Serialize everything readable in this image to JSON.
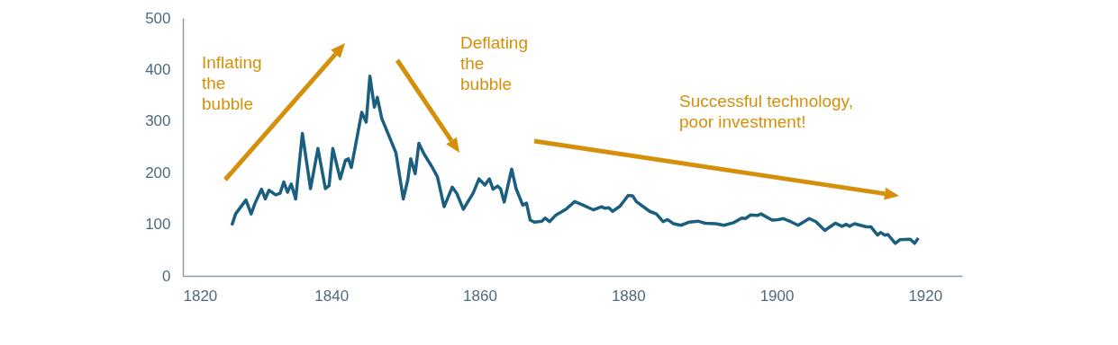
{
  "chart_data": {
    "type": "line",
    "x": [
      1826.6,
      1827.1,
      1828.5,
      1829.2,
      1829.7,
      1830.6,
      1831.1,
      1831.6,
      1832.5,
      1833.1,
      1833.6,
      1834.1,
      1834.6,
      1835.2,
      1836.1,
      1837.2,
      1838.2,
      1839.2,
      1839.7,
      1840.2,
      1841.2,
      1841.9,
      1842.3,
      1842.7,
      1844.1,
      1844.7,
      1845.2,
      1845.8,
      1846.2,
      1846.8,
      1848.7,
      1849.7,
      1850.3,
      1850.7,
      1851.3,
      1851.8,
      1852.5,
      1853.5,
      1854.3,
      1855.2,
      1856.3,
      1856.9,
      1857.8,
      1859.1,
      1859.9,
      1860.7,
      1861.3,
      1861.8,
      1862.4,
      1862.8,
      1863.3,
      1864.3,
      1864.9,
      1865.8,
      1866.3,
      1866.8,
      1867.4,
      1868.4,
      1868.8,
      1869.4,
      1870.2,
      1871.6,
      1872.8,
      1873.8,
      1875.3,
      1876.4,
      1876.9,
      1877.4,
      1877.9,
      1878.9,
      1880.0,
      1880.6,
      1881.1,
      1882.9,
      1883.8,
      1884.7,
      1885.3,
      1886.1,
      1887.1,
      1888.2,
      1889.4,
      1890.4,
      1891.8,
      1892.9,
      1894.2,
      1895.3,
      1895.8,
      1896.5,
      1897.4,
      1897.9,
      1899.4,
      1900.2,
      1900.9,
      1901.9,
      1902.9,
      1904.4,
      1905.3,
      1906.5,
      1907.9,
      1908.8,
      1909.4,
      1909.8,
      1910.5,
      1912.1,
      1912.7,
      1913.6,
      1914.0,
      1914.6,
      1915.0,
      1916.0,
      1916.6,
      1918.0,
      1918.6,
      1919.1
    ],
    "series": [
      {
        "color": "#1a5f80",
        "values": [
          98,
          120,
          147,
          120,
          140,
          168,
          149,
          166,
          157,
          160,
          182,
          162,
          178,
          149,
          276,
          169,
          247,
          169,
          175,
          247,
          188,
          224,
          227,
          210,
          317,
          298,
          387,
          327,
          346,
          305,
          239,
          149,
          186,
          227,
          198,
          257,
          236,
          213,
          192,
          134,
          172,
          160,
          129,
          160,
          188,
          176,
          188,
          168,
          174,
          169,
          143,
          207,
          169,
          137,
          141,
          108,
          104,
          106,
          112,
          105,
          117,
          129,
          144,
          138,
          128,
          134,
          131,
          132,
          125,
          135,
          156,
          155,
          144,
          125,
          120,
          105,
          109,
          101,
          98,
          104,
          106,
          102,
          101,
          98,
          103,
          112,
          111,
          118,
          117,
          120,
          108,
          109,
          111,
          105,
          98,
          111,
          105,
          88,
          102,
          96,
          100,
          96,
          101,
          95,
          95,
          79,
          84,
          79,
          80,
          63,
          70,
          71,
          63,
          73
        ]
      }
    ],
    "xlim": [
      1820,
      1925
    ],
    "xticks": [
      1820,
      1840,
      1860,
      1880,
      1900,
      1920
    ],
    "ylim": [
      0,
      500
    ],
    "yticks": [
      0,
      100,
      200,
      300,
      400,
      500
    ],
    "grid": false,
    "marker": "none",
    "line_style": "solid",
    "annotations": [
      "Inflating\nthe\nbubble",
      "Deflating\nthe\nbubble",
      "Successful technology,\npoor investment!"
    ]
  }
}
